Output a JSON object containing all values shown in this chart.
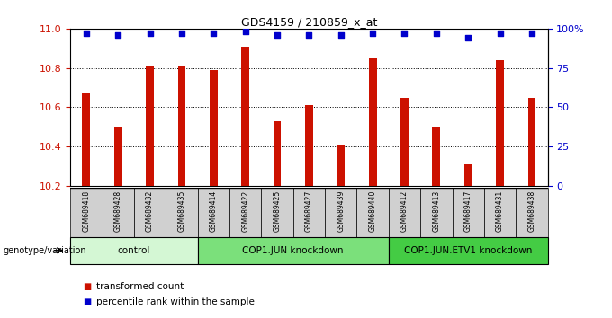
{
  "title": "GDS4159 / 210859_x_at",
  "samples": [
    "GSM689418",
    "GSM689428",
    "GSM689432",
    "GSM689435",
    "GSM689414",
    "GSM689422",
    "GSM689425",
    "GSM689427",
    "GSM689439",
    "GSM689440",
    "GSM689412",
    "GSM689413",
    "GSM689417",
    "GSM689431",
    "GSM689438"
  ],
  "transformed_counts": [
    10.67,
    10.5,
    10.81,
    10.81,
    10.79,
    10.91,
    10.53,
    10.61,
    10.41,
    10.85,
    10.65,
    10.5,
    10.31,
    10.84,
    10.65
  ],
  "percentile_ranks": [
    97,
    96,
    97,
    97,
    97,
    98,
    96,
    96,
    96,
    97,
    97,
    97,
    94,
    97,
    97
  ],
  "groups": [
    {
      "name": "control",
      "start": 0,
      "end": 4,
      "color": "#d4f7d4"
    },
    {
      "name": "COP1.JUN knockdown",
      "start": 4,
      "end": 10,
      "color": "#7be07b"
    },
    {
      "name": "COP1.JUN.ETV1 knockdown",
      "start": 10,
      "end": 15,
      "color": "#44cc44"
    }
  ],
  "ylim_left": [
    10.2,
    11.0
  ],
  "ylim_right": [
    0,
    100
  ],
  "yticks_left": [
    10.2,
    10.4,
    10.6,
    10.8,
    11.0
  ],
  "yticks_right": [
    0,
    25,
    50,
    75,
    100
  ],
  "bar_color": "#cc1100",
  "dot_color": "#0000cc",
  "bar_width": 0.25,
  "grid_color": "#000000",
  "bg_color": "#ffffff",
  "tick_area_color": "#d0d0d0",
  "legend_red_label": "transformed count",
  "legend_blue_label": "percentile rank within the sample",
  "xlabel_label": "genotype/variation"
}
